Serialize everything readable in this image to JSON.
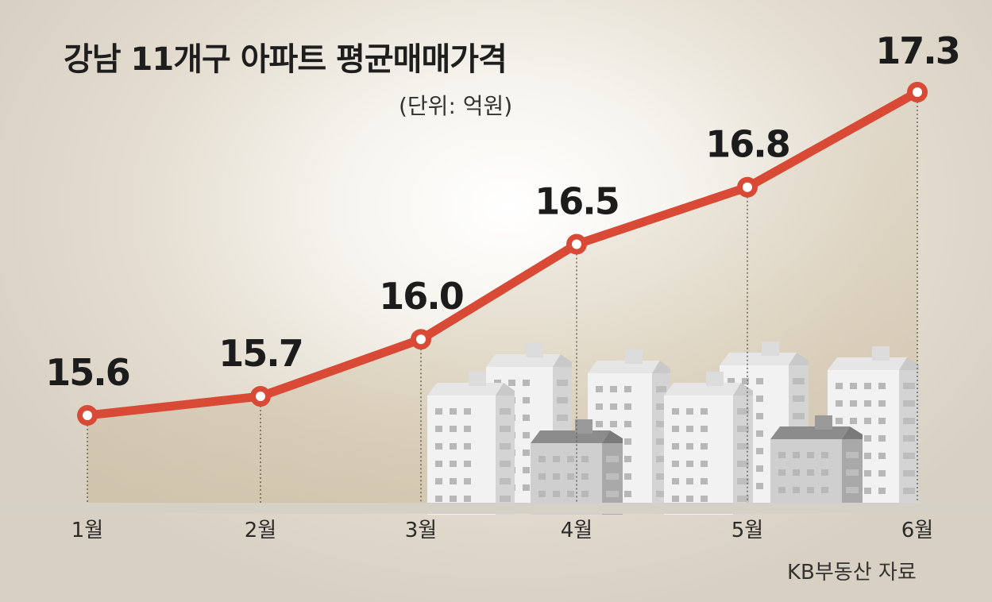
{
  "chart_data": {
    "type": "line",
    "title": "강남 11개구 아파트 평균매매가격",
    "unit": "(단위: 억원)",
    "categories": [
      "1월",
      "2월",
      "3월",
      "4월",
      "5월",
      "6월"
    ],
    "values": [
      15.6,
      15.7,
      16.0,
      16.5,
      16.8,
      17.3
    ],
    "data_labels": [
      "15.6",
      "15.7",
      "16.0",
      "16.5",
      "16.8",
      "17.3"
    ],
    "ylim": [
      15.0,
      17.5
    ],
    "grid": false,
    "legend": "none",
    "source": "KB부동산 자료",
    "colors": {
      "line": "#d94a36",
      "marker_fill": "#ffffff",
      "area_fill": "#c9b99a",
      "drop_line": "#6a6458",
      "baseline": "#d6d1c7",
      "building_light": "#f2f2f2",
      "building_shade": "#d4d4d4",
      "building_window": "#b8b8b8",
      "building_dark_roof": "#8c8c8c"
    },
    "illustration": "apartment-buildings"
  }
}
